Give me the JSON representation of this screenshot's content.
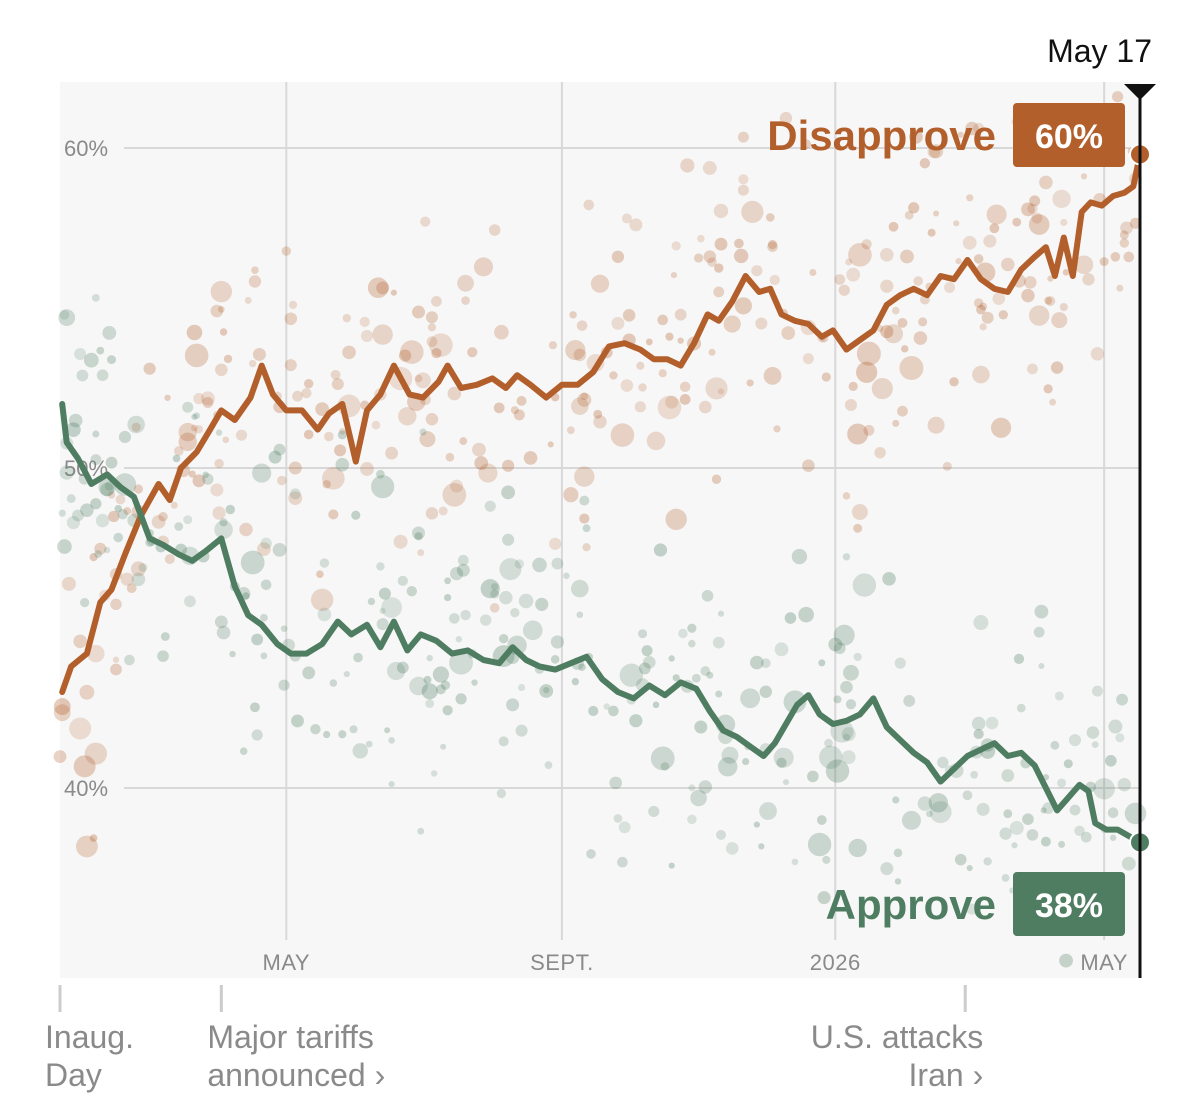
{
  "chart_data": {
    "type": "line",
    "title": "",
    "xlabel": "",
    "ylabel": "",
    "y_unit": "%",
    "ylim": [
      34,
      62
    ],
    "y_ticks": [
      {
        "value": 60,
        "label": "60%"
      },
      {
        "value": 50,
        "label": "50%"
      },
      {
        "value": 40,
        "label": "40%"
      }
    ],
    "x_range": [
      "2025-01-20",
      "2026-05-17"
    ],
    "x_ticks": [
      {
        "date": "2025-05-01",
        "label": "MAY"
      },
      {
        "date": "2025-09-01",
        "label": "SEPT."
      },
      {
        "date": "2026-01-01",
        "label": "2026"
      },
      {
        "date": "2026-05-01",
        "label": "MAY"
      }
    ],
    "grid": true,
    "latest": {
      "date": "2026-05-17",
      "label": "May 17"
    },
    "annotations": [
      {
        "date": "2025-01-20",
        "lines": [
          "Inaug.",
          "Day"
        ],
        "align": "start"
      },
      {
        "date": "2025-04-02",
        "lines": [
          "Major tariffs",
          "announced ›"
        ],
        "align": "start"
      },
      {
        "date": "2026-02-28",
        "lines": [
          "U.S. attacks",
          "Iran ›"
        ],
        "align": "end"
      }
    ],
    "series": [
      {
        "name": "Disapprove",
        "key": "disapprove",
        "color": "#b35f2c",
        "latest_value": "60%",
        "points": [
          [
            "2025-01-21",
            43.0
          ],
          [
            "2025-01-25",
            43.8
          ],
          [
            "2025-02-01",
            44.2
          ],
          [
            "2025-02-07",
            45.8
          ],
          [
            "2025-02-12",
            46.2
          ],
          [
            "2025-02-18",
            47.3
          ],
          [
            "2025-02-25",
            48.5
          ],
          [
            "2025-03-05",
            49.5
          ],
          [
            "2025-03-10",
            49.0
          ],
          [
            "2025-03-15",
            50.0
          ],
          [
            "2025-03-22",
            50.5
          ],
          [
            "2025-03-28",
            51.2
          ],
          [
            "2025-04-02",
            51.8
          ],
          [
            "2025-04-08",
            51.5
          ],
          [
            "2025-04-15",
            52.2
          ],
          [
            "2025-04-20",
            53.2
          ],
          [
            "2025-04-25",
            52.3
          ],
          [
            "2025-05-01",
            51.8
          ],
          [
            "2025-05-08",
            51.8
          ],
          [
            "2025-05-15",
            51.2
          ],
          [
            "2025-05-20",
            51.7
          ],
          [
            "2025-05-26",
            52.0
          ],
          [
            "2025-06-01",
            50.2
          ],
          [
            "2025-06-06",
            51.8
          ],
          [
            "2025-06-12",
            52.3
          ],
          [
            "2025-06-18",
            53.2
          ],
          [
            "2025-06-25",
            52.3
          ],
          [
            "2025-07-01",
            52.2
          ],
          [
            "2025-07-08",
            52.7
          ],
          [
            "2025-07-12",
            53.2
          ],
          [
            "2025-07-18",
            52.5
          ],
          [
            "2025-07-25",
            52.6
          ],
          [
            "2025-08-01",
            52.8
          ],
          [
            "2025-08-07",
            52.5
          ],
          [
            "2025-08-12",
            52.9
          ],
          [
            "2025-08-18",
            52.6
          ],
          [
            "2025-08-25",
            52.2
          ],
          [
            "2025-09-01",
            52.6
          ],
          [
            "2025-09-08",
            52.6
          ],
          [
            "2025-09-15",
            53.0
          ],
          [
            "2025-09-22",
            53.8
          ],
          [
            "2025-09-29",
            53.9
          ],
          [
            "2025-10-06",
            53.7
          ],
          [
            "2025-10-12",
            53.4
          ],
          [
            "2025-10-18",
            53.4
          ],
          [
            "2025-10-24",
            53.2
          ],
          [
            "2025-10-30",
            53.9
          ],
          [
            "2025-11-05",
            54.8
          ],
          [
            "2025-11-10",
            54.6
          ],
          [
            "2025-11-16",
            55.2
          ],
          [
            "2025-11-22",
            56.0
          ],
          [
            "2025-11-28",
            55.5
          ],
          [
            "2025-12-03",
            55.6
          ],
          [
            "2025-12-08",
            54.8
          ],
          [
            "2025-12-14",
            54.6
          ],
          [
            "2025-12-20",
            54.5
          ],
          [
            "2025-12-26",
            54.1
          ],
          [
            "2025-12-31",
            54.3
          ],
          [
            "2026-01-06",
            53.7
          ],
          [
            "2026-01-12",
            54.0
          ],
          [
            "2026-01-18",
            54.3
          ],
          [
            "2026-01-24",
            55.1
          ],
          [
            "2026-01-30",
            55.4
          ],
          [
            "2026-02-05",
            55.6
          ],
          [
            "2026-02-11",
            55.4
          ],
          [
            "2026-02-17",
            56.0
          ],
          [
            "2026-02-23",
            55.9
          ],
          [
            "2026-03-01",
            56.5
          ],
          [
            "2026-03-07",
            55.9
          ],
          [
            "2026-03-13",
            55.6
          ],
          [
            "2026-03-19",
            55.5
          ],
          [
            "2026-03-25",
            56.2
          ],
          [
            "2026-03-31",
            56.6
          ],
          [
            "2026-04-05",
            56.9
          ],
          [
            "2026-04-09",
            56.0
          ],
          [
            "2026-04-13",
            57.2
          ],
          [
            "2026-04-17",
            56.0
          ],
          [
            "2026-04-21",
            58.0
          ],
          [
            "2026-04-25",
            58.3
          ],
          [
            "2026-04-30",
            58.2
          ],
          [
            "2026-05-05",
            58.5
          ],
          [
            "2026-05-10",
            58.6
          ],
          [
            "2026-05-14",
            58.8
          ],
          [
            "2026-05-17",
            59.8
          ]
        ]
      },
      {
        "name": "Approve",
        "key": "approve",
        "color": "#4f7d62",
        "latest_value": "38%",
        "points": [
          [
            "2025-01-21",
            52.0
          ],
          [
            "2025-01-23",
            50.8
          ],
          [
            "2025-01-28",
            50.3
          ],
          [
            "2025-02-03",
            49.5
          ],
          [
            "2025-02-10",
            49.8
          ],
          [
            "2025-02-16",
            49.4
          ],
          [
            "2025-02-22",
            49.1
          ],
          [
            "2025-03-01",
            47.8
          ],
          [
            "2025-03-07",
            47.6
          ],
          [
            "2025-03-14",
            47.3
          ],
          [
            "2025-03-20",
            47.1
          ],
          [
            "2025-03-26",
            47.4
          ],
          [
            "2025-04-02",
            47.8
          ],
          [
            "2025-04-08",
            46.3
          ],
          [
            "2025-04-14",
            45.4
          ],
          [
            "2025-04-20",
            45.1
          ],
          [
            "2025-04-27",
            44.5
          ],
          [
            "2025-05-03",
            44.2
          ],
          [
            "2025-05-10",
            44.2
          ],
          [
            "2025-05-17",
            44.5
          ],
          [
            "2025-05-24",
            45.2
          ],
          [
            "2025-05-30",
            44.8
          ],
          [
            "2025-06-06",
            45.1
          ],
          [
            "2025-06-12",
            44.4
          ],
          [
            "2025-06-18",
            45.2
          ],
          [
            "2025-06-24",
            44.3
          ],
          [
            "2025-06-30",
            44.8
          ],
          [
            "2025-07-07",
            44.6
          ],
          [
            "2025-07-14",
            44.2
          ],
          [
            "2025-07-21",
            44.3
          ],
          [
            "2025-07-28",
            44.0
          ],
          [
            "2025-08-04",
            43.9
          ],
          [
            "2025-08-10",
            44.4
          ],
          [
            "2025-08-16",
            44.0
          ],
          [
            "2025-08-22",
            43.8
          ],
          [
            "2025-08-29",
            43.7
          ],
          [
            "2025-09-05",
            43.9
          ],
          [
            "2025-09-12",
            44.1
          ],
          [
            "2025-09-19",
            43.4
          ],
          [
            "2025-09-26",
            43.0
          ],
          [
            "2025-10-03",
            42.8
          ],
          [
            "2025-10-10",
            43.2
          ],
          [
            "2025-10-17",
            42.9
          ],
          [
            "2025-10-24",
            43.3
          ],
          [
            "2025-10-31",
            43.1
          ],
          [
            "2025-11-06",
            42.4
          ],
          [
            "2025-11-12",
            41.8
          ],
          [
            "2025-11-18",
            41.6
          ],
          [
            "2025-11-24",
            41.3
          ],
          [
            "2025-11-30",
            41.0
          ],
          [
            "2025-12-05",
            41.4
          ],
          [
            "2025-12-10",
            42.0
          ],
          [
            "2025-12-15",
            42.6
          ],
          [
            "2025-12-20",
            42.9
          ],
          [
            "2025-12-25",
            42.3
          ],
          [
            "2025-12-31",
            42.0
          ],
          [
            "2026-01-06",
            42.1
          ],
          [
            "2026-01-12",
            42.3
          ],
          [
            "2026-01-18",
            42.8
          ],
          [
            "2026-01-24",
            41.9
          ],
          [
            "2026-01-30",
            41.5
          ],
          [
            "2026-02-05",
            41.1
          ],
          [
            "2026-02-11",
            40.8
          ],
          [
            "2026-02-17",
            40.2
          ],
          [
            "2026-02-23",
            40.6
          ],
          [
            "2026-03-01",
            41.0
          ],
          [
            "2026-03-07",
            41.2
          ],
          [
            "2026-03-13",
            41.4
          ],
          [
            "2026-03-19",
            41.0
          ],
          [
            "2026-03-25",
            41.1
          ],
          [
            "2026-03-31",
            40.7
          ],
          [
            "2026-04-05",
            40.0
          ],
          [
            "2026-04-10",
            39.3
          ],
          [
            "2026-04-15",
            39.7
          ],
          [
            "2026-04-20",
            40.1
          ],
          [
            "2026-04-24",
            39.9
          ],
          [
            "2026-04-27",
            38.9
          ],
          [
            "2026-05-02",
            38.7
          ],
          [
            "2026-05-07",
            38.7
          ],
          [
            "2026-05-12",
            38.5
          ],
          [
            "2026-05-17",
            38.3
          ]
        ]
      }
    ]
  }
}
